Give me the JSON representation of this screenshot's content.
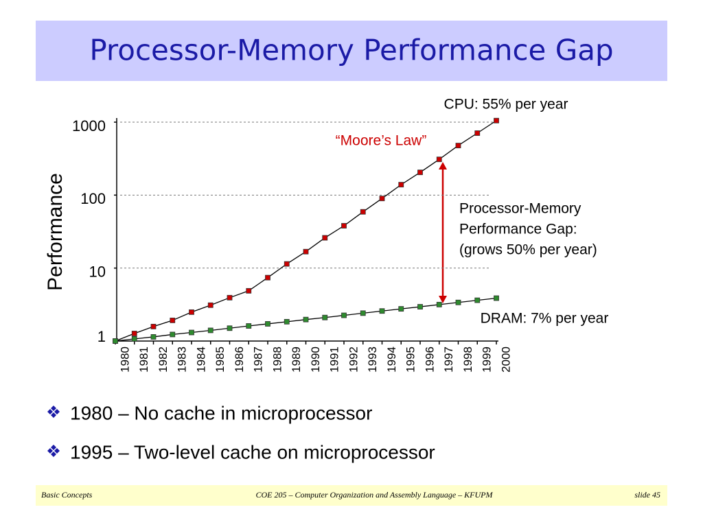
{
  "title": "Processor-Memory Performance Gap",
  "bullets": [
    "1980 – No cache in microprocessor",
    "1995 – Two-level cache on microprocessor"
  ],
  "footer": {
    "left": "Basic Concepts",
    "center": "COE 205 – Computer Organization and Assembly Language – KFUPM",
    "right": "slide 45"
  },
  "chart_data": {
    "type": "line",
    "y_label": "Performance",
    "log_scale": true,
    "grid": true,
    "categories": [
      "1980",
      "1981",
      "1982",
      "1983",
      "1984",
      "1985",
      "1986",
      "1987",
      "1988",
      "1989",
      "1990",
      "1991",
      "1992",
      "1993",
      "1994",
      "1995",
      "1996",
      "1997",
      "1998",
      "1999",
      "2000"
    ],
    "series": [
      {
        "name": "CPU: 55% per year",
        "color": "#cc0000",
        "values": [
          1,
          1.27,
          1.58,
          1.92,
          2.49,
          3.1,
          3.93,
          4.88,
          7.4,
          11.4,
          16.8,
          26,
          38,
          59,
          90,
          139,
          205,
          309,
          478,
          707,
          1050
        ]
      },
      {
        "name": "DRAM: 7% per year",
        "color": "#2e8b2e",
        "values": [
          1,
          1.07,
          1.14,
          1.23,
          1.31,
          1.4,
          1.5,
          1.61,
          1.72,
          1.84,
          1.97,
          2.1,
          2.25,
          2.41,
          2.58,
          2.76,
          2.95,
          3.16,
          3.38,
          3.62,
          3.87
        ]
      }
    ],
    "ylim": [
      1,
      1000
    ],
    "yticks": [
      1,
      10,
      100,
      1000
    ],
    "annotations": [
      "“Moore’s Law”",
      "Processor-Memory",
      "Performance Gap:",
      "(grows 50% per year)"
    ]
  }
}
